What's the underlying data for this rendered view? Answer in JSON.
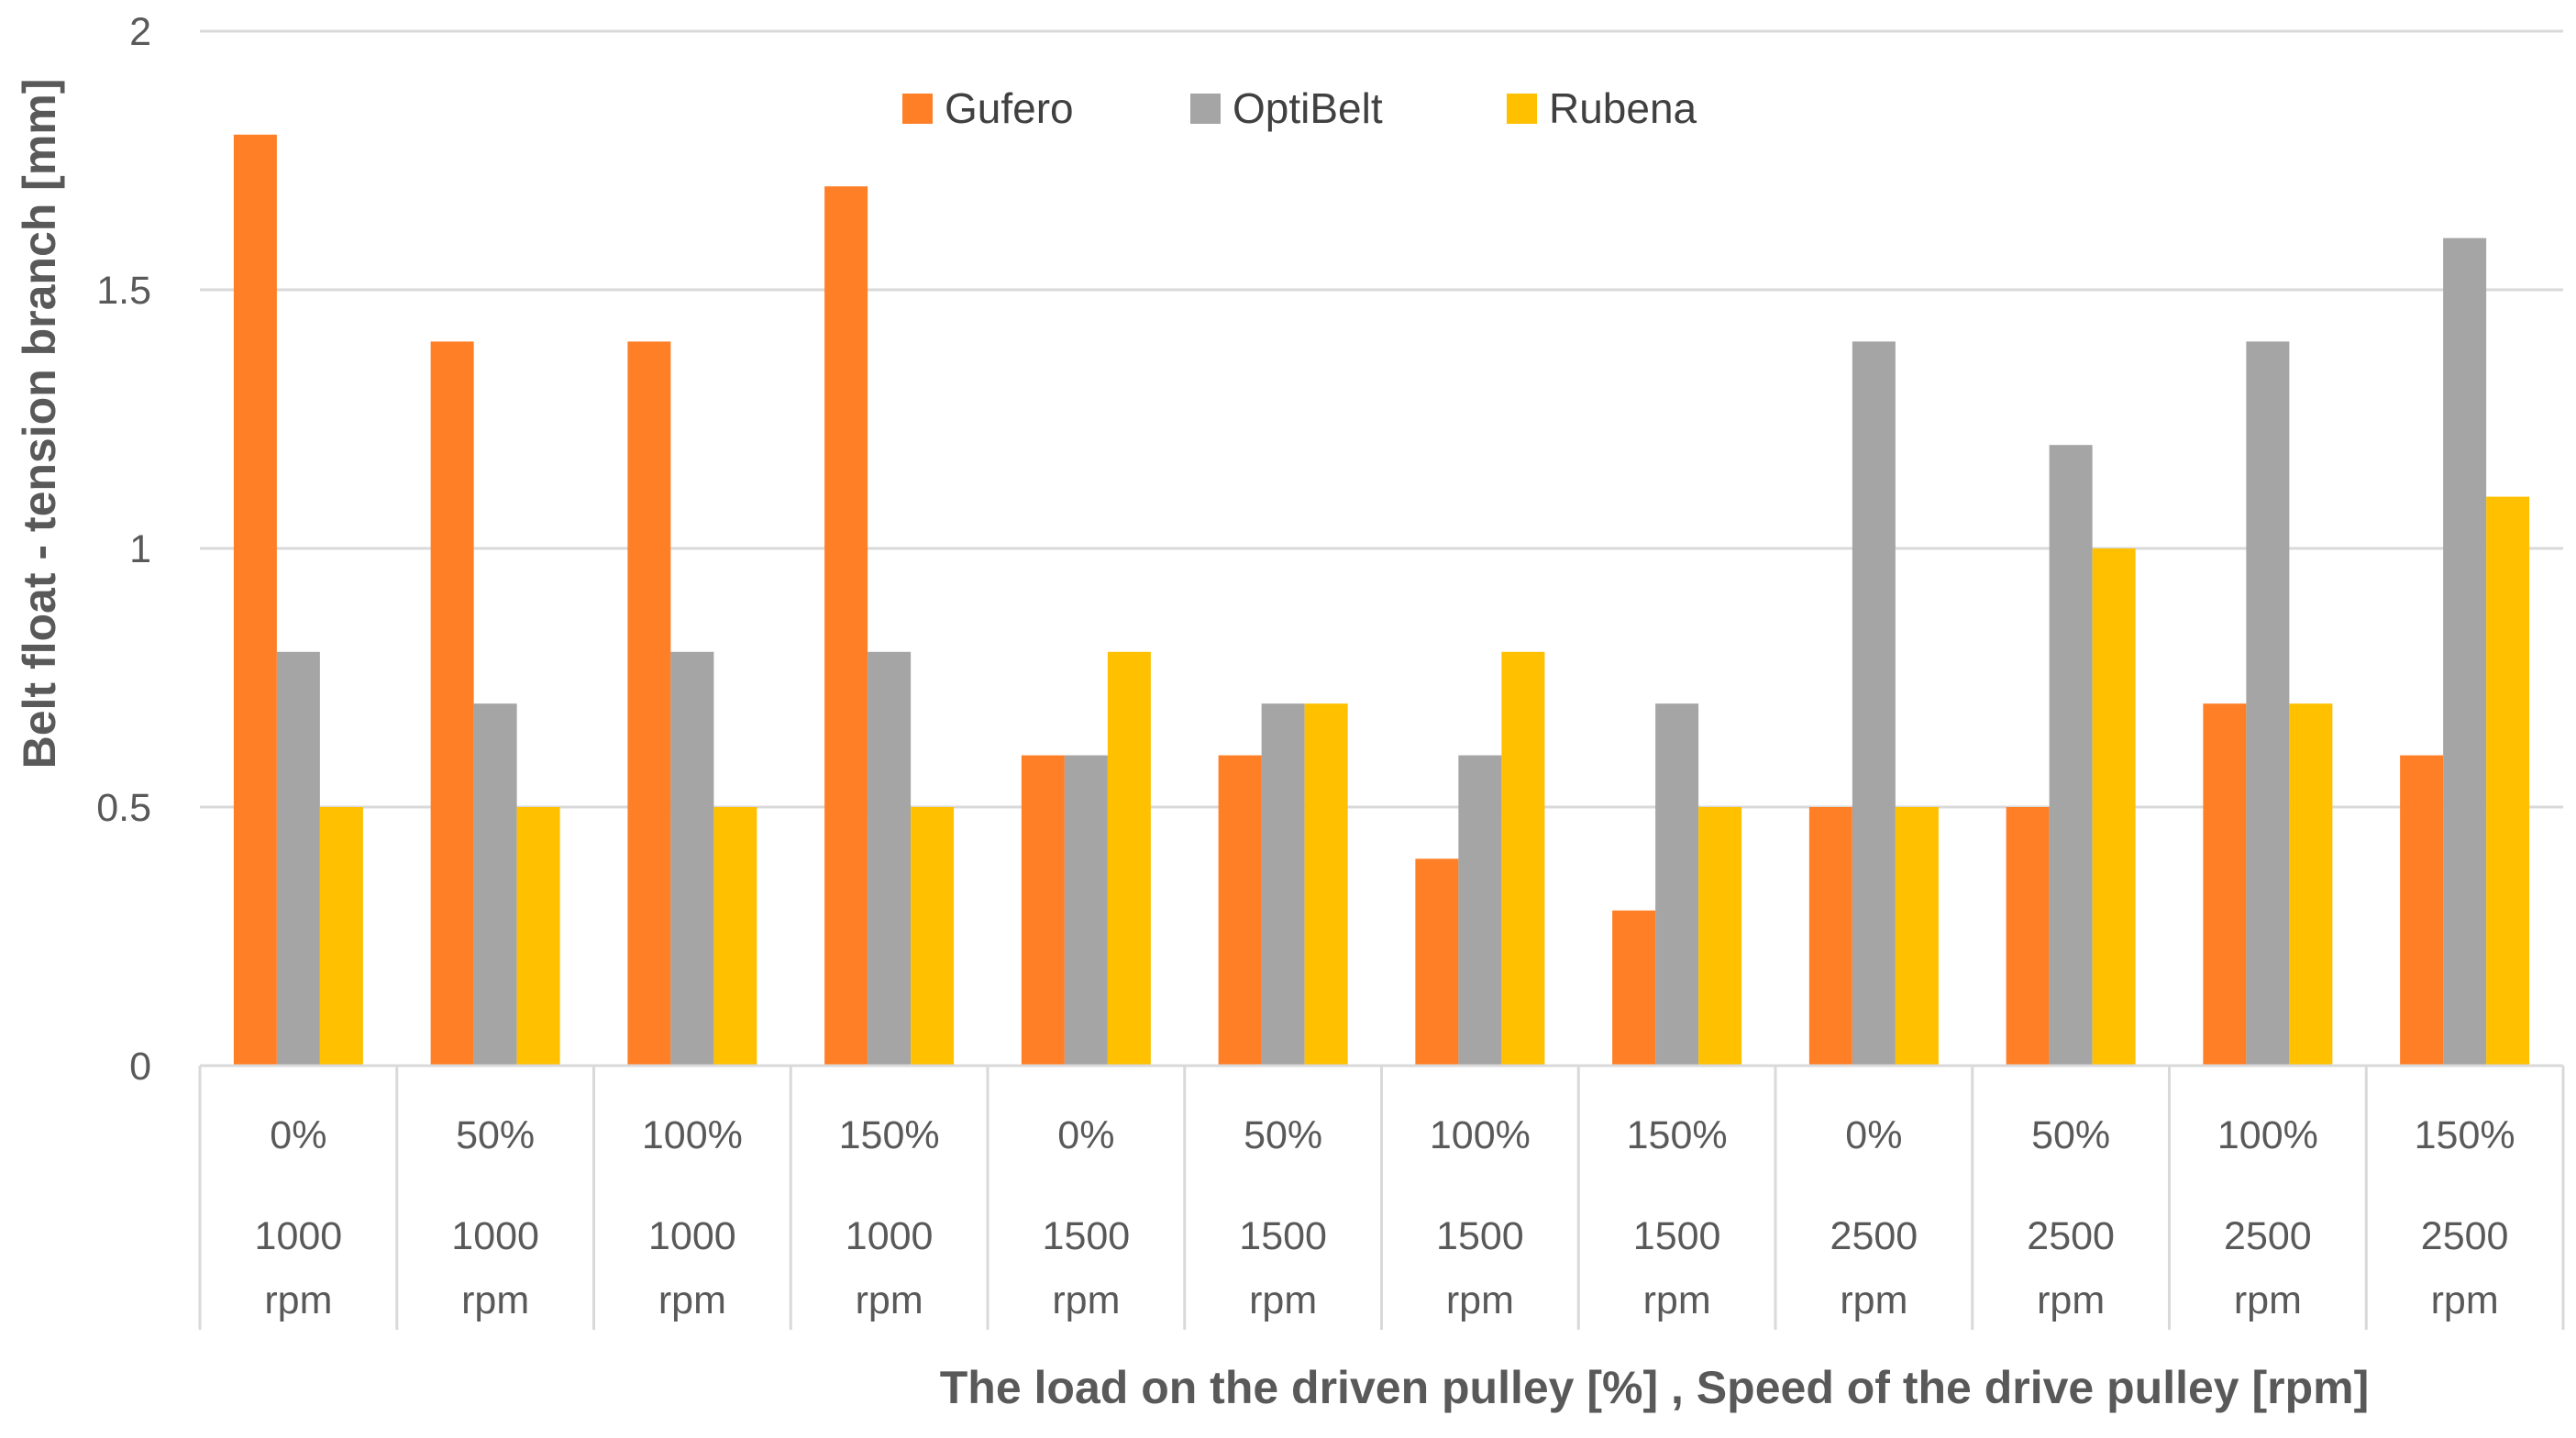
{
  "chart_data": {
    "type": "bar",
    "title": "",
    "xlabel": "The load on the driven pulley [%] , Speed of the drive pulley [rpm]",
    "ylabel": "Belt float - tension branch [mm]",
    "ylim": [
      0,
      2
    ],
    "yticks": [
      0,
      0.5,
      1,
      1.5,
      2
    ],
    "ytick_labels": [
      "0",
      "0.5",
      "1",
      "1.5",
      "2"
    ],
    "grid": true,
    "legend_position": "top-center",
    "categories": [
      {
        "load": "0%",
        "speed": "1000",
        "unit": "rpm"
      },
      {
        "load": "50%",
        "speed": "1000",
        "unit": "rpm"
      },
      {
        "load": "100%",
        "speed": "1000",
        "unit": "rpm"
      },
      {
        "load": "150%",
        "speed": "1000",
        "unit": "rpm"
      },
      {
        "load": "0%",
        "speed": "1500",
        "unit": "rpm"
      },
      {
        "load": "50%",
        "speed": "1500",
        "unit": "rpm"
      },
      {
        "load": "100%",
        "speed": "1500",
        "unit": "rpm"
      },
      {
        "load": "150%",
        "speed": "1500",
        "unit": "rpm"
      },
      {
        "load": "0%",
        "speed": "2500",
        "unit": "rpm"
      },
      {
        "load": "50%",
        "speed": "2500",
        "unit": "rpm"
      },
      {
        "load": "100%",
        "speed": "2500",
        "unit": "rpm"
      },
      {
        "load": "150%",
        "speed": "2500",
        "unit": "rpm"
      }
    ],
    "series": [
      {
        "name": "Gufero",
        "color": "#FF7F27",
        "values": [
          1.8,
          1.4,
          1.4,
          1.7,
          0.6,
          0.6,
          0.4,
          0.3,
          0.5,
          0.5,
          0.7,
          0.6
        ]
      },
      {
        "name": "OptiBelt",
        "color": "#A5A5A5",
        "values": [
          0.8,
          0.7,
          0.8,
          0.8,
          0.6,
          0.7,
          0.6,
          0.7,
          1.4,
          1.2,
          1.4,
          1.6
        ]
      },
      {
        "name": "Rubena",
        "color": "#FFC000",
        "values": [
          0.5,
          0.5,
          0.5,
          0.5,
          0.8,
          0.7,
          0.8,
          0.5,
          0.5,
          1.0,
          0.7,
          1.1
        ]
      }
    ]
  }
}
